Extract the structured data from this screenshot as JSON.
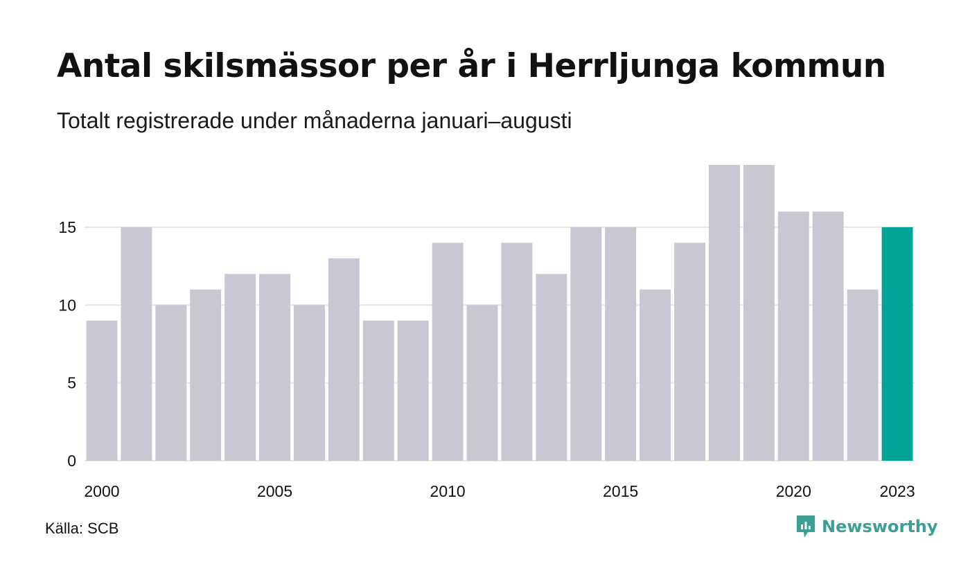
{
  "header": {
    "title": "Antal skilsmässor per år i Herrljunga kommun",
    "subtitle": "Totalt registrerade under månaderna januari–augusti"
  },
  "chart_data": {
    "type": "bar",
    "categories": [
      "2000",
      "2001",
      "2002",
      "2003",
      "2004",
      "2005",
      "2006",
      "2007",
      "2008",
      "2009",
      "2010",
      "2011",
      "2012",
      "2013",
      "2014",
      "2015",
      "2016",
      "2017",
      "2018",
      "2019",
      "2020",
      "2021",
      "2022",
      "2023"
    ],
    "values": [
      9,
      15,
      10,
      11,
      12,
      12,
      10,
      13,
      9,
      9,
      14,
      10,
      14,
      12,
      15,
      15,
      11,
      14,
      19,
      19,
      16,
      16,
      11,
      15
    ],
    "x_tick_labels": [
      "2000",
      "2005",
      "2010",
      "2015",
      "2020",
      "2023"
    ],
    "y_ticks": [
      0,
      5,
      10,
      15
    ],
    "ylim": [
      0,
      19
    ],
    "grid": true,
    "colors": {
      "bar": "#c8c7d2",
      "highlight": "#00a398",
      "grid": "#e6e6e6"
    },
    "highlight_category": "2023"
  },
  "footer": {
    "source": "Källa: SCB",
    "brand": "Newsworthy",
    "brand_icon": "newsworthy-logo-icon",
    "brand_color": "#3d9e96"
  }
}
